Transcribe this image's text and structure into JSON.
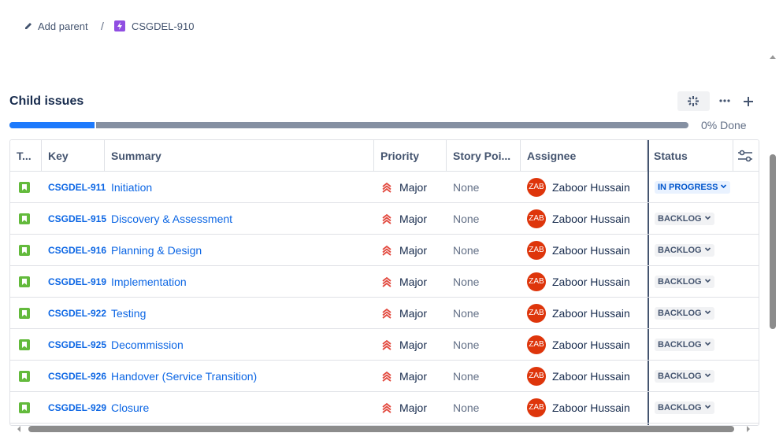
{
  "breadcrumb": {
    "parent_action": "Add parent",
    "separator": "/",
    "issue_key": "CSGDEL-910"
  },
  "child_issues": {
    "title": "Child issues",
    "progress_label": "0% Done",
    "columns": [
      "T...",
      "Key",
      "Summary",
      "Priority",
      "Story Poi...",
      "Assignee",
      "Status"
    ],
    "rows": [
      {
        "key": "CSGDEL-911",
        "summary": "Initiation",
        "priority": "Major",
        "story_points": "None",
        "avatar": "ZAB",
        "assignee": "Zaboor Hussain",
        "status": "IN PROGRESS"
      },
      {
        "key": "CSGDEL-915",
        "summary": "Discovery & Assessment",
        "priority": "Major",
        "story_points": "None",
        "avatar": "ZAB",
        "assignee": "Zaboor Hussain",
        "status": "BACKLOG"
      },
      {
        "key": "CSGDEL-916",
        "summary": "Planning & Design",
        "priority": "Major",
        "story_points": "None",
        "avatar": "ZAB",
        "assignee": "Zaboor Hussain",
        "status": "BACKLOG"
      },
      {
        "key": "CSGDEL-919",
        "summary": "Implementation",
        "priority": "Major",
        "story_points": "None",
        "avatar": "ZAB",
        "assignee": "Zaboor Hussain",
        "status": "BACKLOG"
      },
      {
        "key": "CSGDEL-922",
        "summary": "Testing",
        "priority": "Major",
        "story_points": "None",
        "avatar": "ZAB",
        "assignee": "Zaboor Hussain",
        "status": "BACKLOG"
      },
      {
        "key": "CSGDEL-925",
        "summary": "Decommission",
        "priority": "Major",
        "story_points": "None",
        "avatar": "ZAB",
        "assignee": "Zaboor Hussain",
        "status": "BACKLOG"
      },
      {
        "key": "CSGDEL-926",
        "summary": "Handover (Service Transition)",
        "priority": "Major",
        "story_points": "None",
        "avatar": "ZAB",
        "assignee": "Zaboor Hussain",
        "status": "BACKLOG"
      },
      {
        "key": "CSGDEL-929",
        "summary": "Closure",
        "priority": "Major",
        "story_points": "None",
        "avatar": "ZAB",
        "assignee": "Zaboor Hussain",
        "status": "BACKLOG"
      }
    ]
  }
}
